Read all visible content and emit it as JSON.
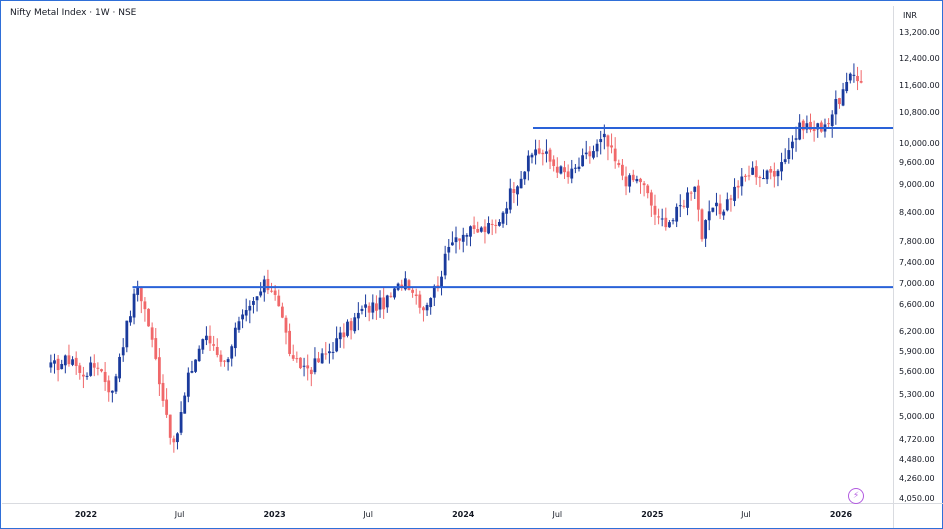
{
  "header": {
    "title": "Nifty Metal Index · 1W · NSE",
    "currency": "INR"
  },
  "colors": {
    "up": "#1a3a9c",
    "down": "#f0686a",
    "hline": "#2a62d8",
    "axis": "#d9dbe0",
    "frame": "#2f6fd8",
    "accent_icon": "#b25be0"
  },
  "icons": {
    "bottom_right": "lightning-icon"
  },
  "chart_data": {
    "type": "candlestick",
    "title": "Nifty Metal Index · 1W · NSE",
    "xlabel": "",
    "ylabel": "",
    "x_range": [
      "2021-10-25",
      "2026-02-09"
    ],
    "y_scale": "log",
    "y_ticks": [
      4050,
      4260,
      4480,
      4720,
      5000,
      5300,
      5600,
      5900,
      6200,
      6600,
      7000,
      7400,
      7800,
      8400,
      9000,
      9600,
      10000,
      10800,
      11600,
      12400,
      13200
    ],
    "y_tick_labels": [
      "4,050.00",
      "4,260.00",
      "4,480.00",
      "4,720.00",
      "5,000.00",
      "5,300.00",
      "5,600.00",
      "5,900.00",
      "6,200.00",
      "6,600.00",
      "7,000.00",
      "7,400.00",
      "7,800.00",
      "8,400.00",
      "9,000.00",
      "9,600.00",
      "10,000.00",
      "10,800.00",
      "11,600.00",
      "12,400.00",
      "13,200.00"
    ],
    "x_ticks": [
      {
        "date": "2022-01-01",
        "label": "2022",
        "major": true
      },
      {
        "date": "2022-07-01",
        "label": "Jul",
        "major": false
      },
      {
        "date": "2023-01-01",
        "label": "2023",
        "major": true
      },
      {
        "date": "2023-07-01",
        "label": "Jul",
        "major": false
      },
      {
        "date": "2024-01-01",
        "label": "2024",
        "major": true
      },
      {
        "date": "2024-07-01",
        "label": "Jul",
        "major": false
      },
      {
        "date": "2025-01-01",
        "label": "2025",
        "major": true
      },
      {
        "date": "2025-07-01",
        "label": "Jul",
        "major": false
      },
      {
        "date": "2026-01-01",
        "label": "2026",
        "major": true
      }
    ],
    "horizontal_lines": [
      {
        "value": 6920,
        "from": "2022-04-01",
        "to": "2026-02-20"
      },
      {
        "value": 10380,
        "from": "2024-05-15",
        "to": "2026-02-20"
      }
    ],
    "weekly_closes": [
      [
        "2021-10-25",
        5650
      ],
      [
        "2021-12-06",
        5800
      ],
      [
        "2021-12-20",
        5550
      ],
      [
        "2022-01-24",
        5700
      ],
      [
        "2022-02-21",
        5300
      ],
      [
        "2022-03-07",
        5850
      ],
      [
        "2022-04-11",
        6950
      ],
      [
        "2022-05-02",
        6300
      ],
      [
        "2022-06-20",
        4600
      ],
      [
        "2022-07-18",
        5500
      ],
      [
        "2022-08-15",
        6100
      ],
      [
        "2022-09-05",
        6000
      ],
      [
        "2022-09-26",
        5700
      ],
      [
        "2022-10-17",
        6200
      ],
      [
        "2022-11-14",
        6500
      ],
      [
        "2022-12-12",
        6950
      ],
      [
        "2023-01-02",
        6850
      ],
      [
        "2023-02-06",
        5700
      ],
      [
        "2023-03-13",
        5650
      ],
      [
        "2023-04-10",
        5850
      ],
      [
        "2023-06-19",
        6500
      ],
      [
        "2023-08-07",
        6650
      ],
      [
        "2023-09-11",
        7100
      ],
      [
        "2023-10-16",
        6550
      ],
      [
        "2023-11-13",
        7000
      ],
      [
        "2023-12-11",
        7900
      ],
      [
        "2024-01-29",
        8000
      ],
      [
        "2024-03-04",
        8100
      ],
      [
        "2024-04-01",
        8800
      ],
      [
        "2024-05-20",
        9900
      ],
      [
        "2024-06-10",
        9700
      ],
      [
        "2024-07-22",
        9200
      ],
      [
        "2024-08-19",
        9600
      ],
      [
        "2024-09-30",
        10100
      ],
      [
        "2024-11-11",
        9100
      ],
      [
        "2024-12-09",
        9100
      ],
      [
        "2025-01-13",
        8200
      ],
      [
        "2025-02-10",
        8250
      ],
      [
        "2025-03-24",
        9050
      ],
      [
        "2025-04-07",
        7900
      ],
      [
        "2025-04-28",
        8500
      ],
      [
        "2025-05-12",
        8400
      ],
      [
        "2025-06-16",
        9000
      ],
      [
        "2025-07-14",
        9350
      ],
      [
        "2025-08-04",
        9200
      ],
      [
        "2025-08-25",
        9350
      ],
      [
        "2025-09-22",
        9900
      ],
      [
        "2025-10-20",
        10500
      ],
      [
        "2025-11-10",
        10300
      ],
      [
        "2025-12-08",
        10600
      ],
      [
        "2026-01-05",
        11400
      ],
      [
        "2026-01-26",
        11900
      ],
      [
        "2026-02-09",
        11750
      ]
    ]
  }
}
